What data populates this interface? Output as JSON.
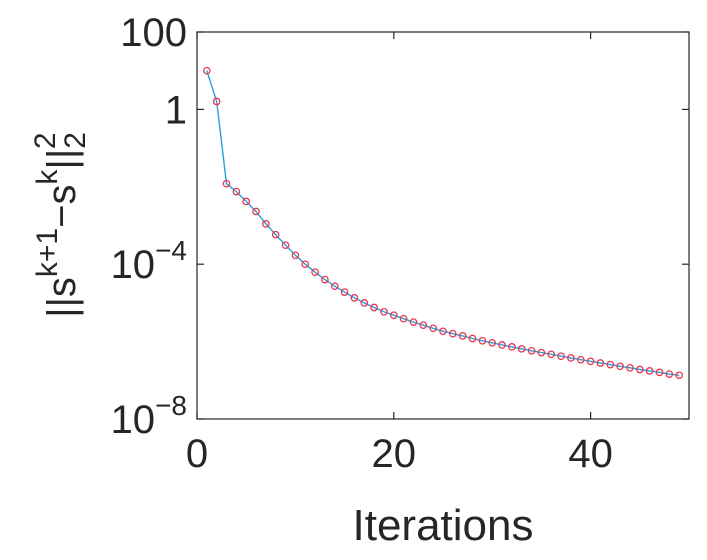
{
  "chart_data": {
    "type": "line",
    "xlabel": "Iterations",
    "ylabel": {
      "base": "||s",
      "sup1": "k+1",
      "mid": "−s",
      "sup2": "k",
      "close": "||",
      "sub": "2",
      "sup3": "2"
    },
    "xlim": [
      0,
      50
    ],
    "ylim": [
      1e-08,
      100
    ],
    "yscale": "log",
    "x_ticks": [
      {
        "value": 0,
        "label": "0"
      },
      {
        "value": 20,
        "label": "20"
      },
      {
        "value": 40,
        "label": "40"
      }
    ],
    "y_ticks": [
      {
        "value": 100,
        "label": "100",
        "base": "",
        "exp": ""
      },
      {
        "value": 1,
        "label": "1",
        "base": "",
        "exp": ""
      },
      {
        "value": 0.0001,
        "label": "",
        "base": "10",
        "exp": "−4"
      },
      {
        "value": 1e-08,
        "label": "",
        "base": "10",
        "exp": "−8"
      }
    ],
    "grid": false,
    "colors": {
      "line": "#2a9fd6",
      "marker": "#e8384f",
      "axis": "#262626"
    },
    "series": [
      {
        "x": [
          1,
          2,
          3,
          4,
          5,
          6,
          7,
          8,
          9,
          10,
          11,
          12,
          13,
          14,
          15,
          16,
          17,
          18,
          19,
          20,
          21,
          22,
          23,
          24,
          25,
          26,
          27,
          28,
          29,
          30,
          31,
          32,
          33,
          34,
          35,
          36,
          37,
          38,
          39,
          40,
          41,
          42,
          43,
          44,
          45,
          46,
          47,
          48,
          49
        ],
        "y": [
          10,
          1.6,
          0.012,
          0.0075,
          0.0042,
          0.0023,
          0.0011,
          0.00058,
          0.00031,
          0.00017,
          0.0001,
          6.2e-05,
          4e-05,
          2.7e-05,
          1.9e-05,
          1.35e-05,
          1e-05,
          7.6e-06,
          5.9e-06,
          4.8e-06,
          3.9e-06,
          3.2e-06,
          2.65e-06,
          2.2e-06,
          1.85e-06,
          1.6e-06,
          1.4e-06,
          1.2e-06,
          1.05e-06,
          9.3e-07,
          8.2e-07,
          7.3e-07,
          6.5e-07,
          5.8e-07,
          5.2e-07,
          4.7e-07,
          4.2e-07,
          3.8e-07,
          3.4e-07,
          3.1e-07,
          2.8e-07,
          2.55e-07,
          2.3e-07,
          2.1e-07,
          1.9e-07,
          1.75e-07,
          1.6e-07,
          1.45e-07,
          1.35e-07
        ]
      }
    ]
  }
}
